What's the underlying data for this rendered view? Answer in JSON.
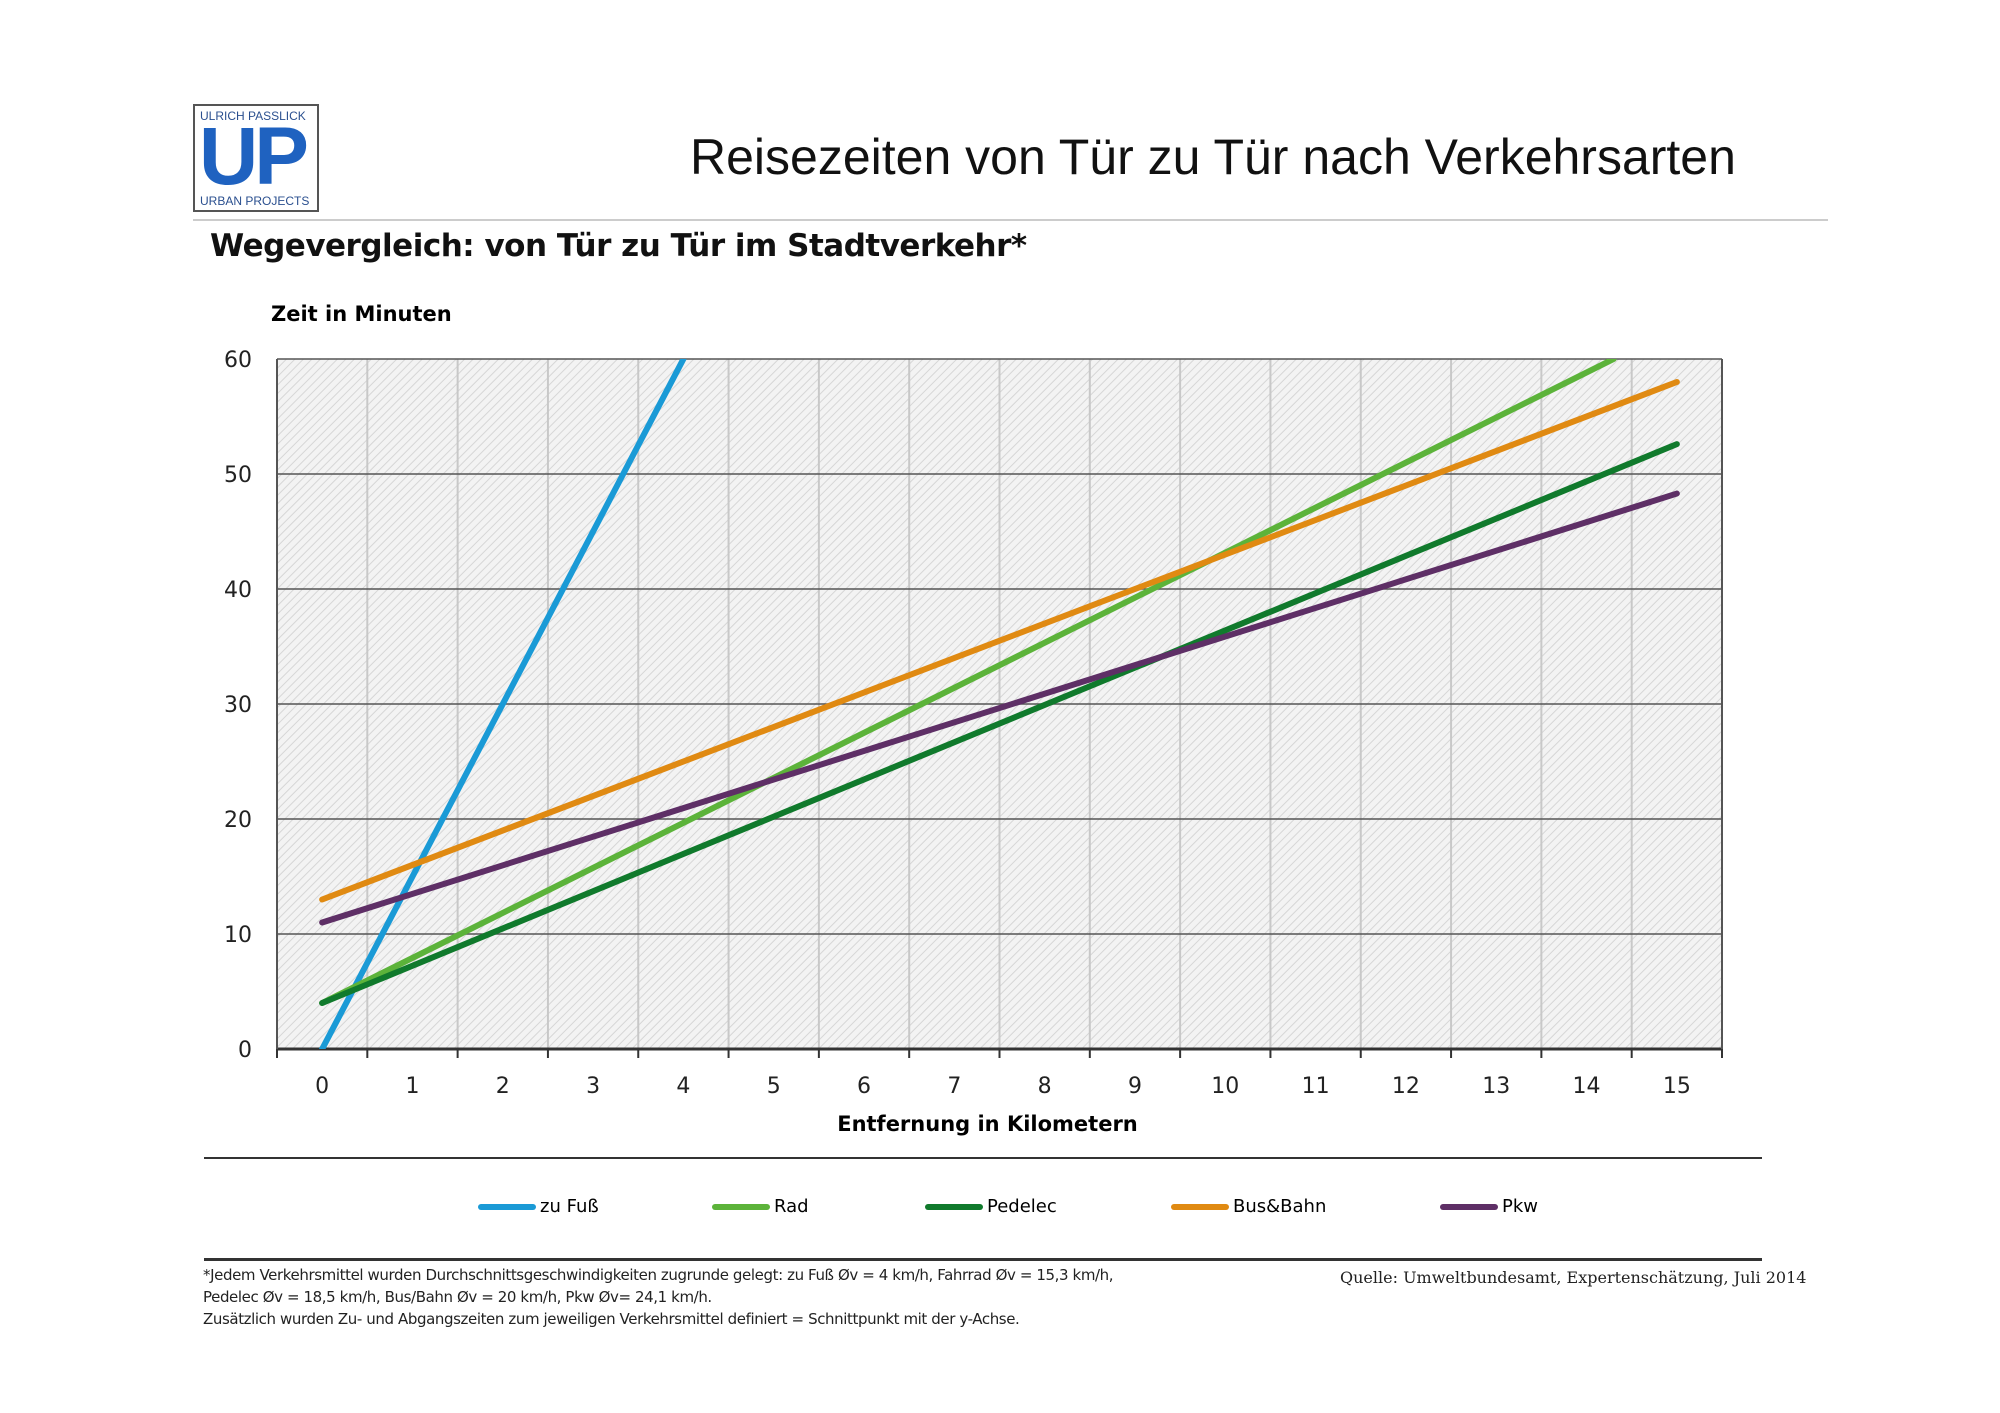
{
  "logo": {
    "top_text": "ULRICH PASSLICK",
    "letters": "UP",
    "bottom_text": "URBAN PROJECTS"
  },
  "page_title": "Reisezeiten von Tür zu Tür nach Verkehrsarten",
  "chart_data": {
    "type": "line",
    "title": "Wegevergleich: von Tür zu Tür im Stadtverkehr*",
    "xlabel": "Entfernung in Kilometern",
    "ylabel": "Zeit in Minuten",
    "xlim": [
      -0.5,
      15.5
    ],
    "ylim": [
      0,
      60
    ],
    "x_ticks": [
      "0",
      "1",
      "2",
      "3",
      "4",
      "5",
      "6",
      "7",
      "8",
      "9",
      "10",
      "11",
      "12",
      "13",
      "14",
      "15"
    ],
    "y_ticks": [
      "0",
      "10",
      "20",
      "30",
      "40",
      "50",
      "60"
    ],
    "grid": true,
    "legend_position": "bottom",
    "series": [
      {
        "name": "zu Fuß",
        "color": "#1a9ad6",
        "x": [
          0,
          4
        ],
        "y": [
          0,
          60
        ]
      },
      {
        "name": "Rad",
        "color": "#5cb33a",
        "x": [
          0,
          14.3
        ],
        "y": [
          4,
          60
        ]
      },
      {
        "name": "Pedelec",
        "color": "#107a2c",
        "x": [
          0,
          15
        ],
        "y": [
          4,
          52.6
        ]
      },
      {
        "name": "Bus&Bahn",
        "color": "#e08a12",
        "x": [
          0,
          15
        ],
        "y": [
          13,
          58
        ]
      },
      {
        "name": "Pkw",
        "color": "#5e2f66",
        "x": [
          0,
          15
        ],
        "y": [
          11,
          48.3
        ]
      }
    ]
  },
  "footnote": [
    "*Jedem Verkehrsmittel wurden Durchschnittsgeschwindigkeiten zugrunde gelegt: zu Fuß Øv = 4 km/h, Fahrrad Øv = 15,3 km/h,",
    "Pedelec Øv = 18,5 km/h, Bus/Bahn Øv = 20 km/h, Pkw Øv= 24,1 km/h.",
    "Zusätzlich wurden Zu- und Abgangszeiten zum jeweiligen Verkehrsmittel definiert = Schnittpunkt mit der y-Achse."
  ],
  "source": "Quelle: Umweltbundesamt, Expertenschätzung, Juli 2014"
}
